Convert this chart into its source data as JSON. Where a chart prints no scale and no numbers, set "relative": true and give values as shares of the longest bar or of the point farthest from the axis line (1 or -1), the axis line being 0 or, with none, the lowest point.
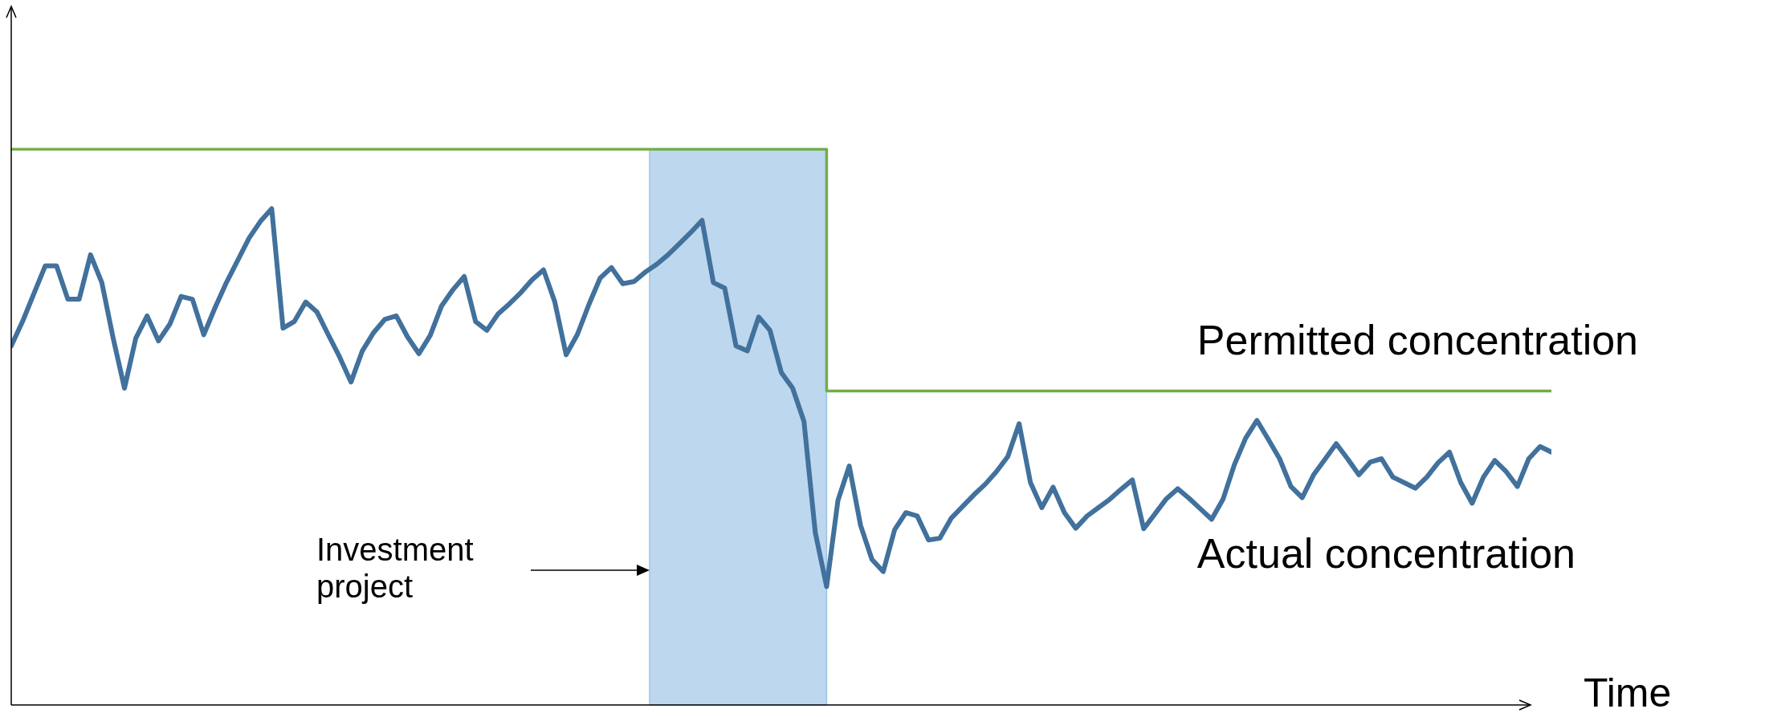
{
  "chart_data": {
    "type": "line",
    "relative": true,
    "xlabel": "Time",
    "legend": false,
    "marker": "none",
    "line_style": "solid",
    "categories": [
      null,
      null,
      null,
      null,
      null,
      null,
      null,
      null,
      null,
      null,
      null,
      null,
      null,
      null,
      null,
      null,
      null,
      null,
      null,
      null,
      null,
      null,
      null,
      null,
      null,
      null,
      null,
      null,
      null,
      null,
      null,
      null,
      null,
      null,
      null,
      null,
      null,
      null,
      null,
      null,
      null,
      null,
      null,
      null,
      null,
      null,
      null,
      null,
      null,
      null,
      null,
      null,
      null,
      null,
      null,
      null,
      null,
      null,
      null,
      null,
      null,
      null,
      null,
      null,
      null,
      null,
      null,
      null,
      null,
      null,
      null,
      null,
      null,
      null,
      null,
      null,
      null,
      null,
      null,
      null,
      null,
      null,
      null,
      null,
      null,
      null,
      null,
      null,
      null,
      null,
      null,
      null,
      null,
      null,
      null,
      null,
      null,
      null,
      null,
      null,
      null,
      null,
      null,
      null,
      null,
      null,
      null,
      null,
      null,
      null,
      null,
      null,
      null,
      null,
      null,
      null,
      null,
      null,
      null,
      null,
      null,
      null,
      null,
      null,
      null,
      null,
      null,
      null,
      null,
      null,
      null,
      null,
      null,
      null,
      null,
      null,
      null
    ],
    "annotations": [
      "Investment project"
    ],
    "series": [
      {
        "name": "Permitted concentration",
        "type": "step",
        "color": "#70ad47",
        "values": [
          1,
          1,
          1,
          1,
          1,
          1,
          1,
          1,
          1,
          1,
          1,
          1,
          1,
          1,
          1,
          1,
          1,
          1,
          1,
          1,
          1,
          1,
          1,
          1,
          1,
          1,
          1,
          1,
          1,
          1,
          1,
          1,
          1,
          1,
          1,
          1,
          1,
          1,
          1,
          1,
          1,
          1,
          1,
          1,
          1,
          1,
          1,
          1,
          1,
          1,
          1,
          1,
          1,
          1,
          1,
          1,
          1,
          1,
          1,
          1,
          1,
          1,
          1,
          1,
          1,
          1,
          1,
          1,
          1,
          1,
          1,
          1,
          0.565,
          0.565,
          0.565,
          0.565,
          0.565,
          0.565,
          0.565,
          0.565,
          0.565,
          0.565,
          0.565,
          0.565,
          0.565,
          0.565,
          0.565,
          0.565,
          0.565,
          0.565,
          0.565,
          0.565,
          0.565,
          0.565,
          0.565,
          0.565,
          0.565,
          0.565,
          0.565,
          0.565,
          0.565,
          0.565,
          0.565,
          0.565,
          0.565,
          0.565,
          0.565,
          0.565,
          0.565,
          0.565,
          0.565,
          0.565,
          0.565,
          0.565,
          0.565,
          0.565,
          0.565,
          0.565,
          0.565,
          0.565,
          0.565,
          0.565,
          0.565,
          0.565,
          0.565,
          0.565,
          0.565,
          0.565,
          0.565,
          0.565,
          0.565,
          0.565,
          0.565,
          0.565,
          0.565,
          0.565,
          0.565
        ]
      },
      {
        "name": "Actual concentration",
        "color": "#41719c",
        "values": [
          0.646,
          0.69,
          0.74,
          0.79,
          0.79,
          0.73,
          0.73,
          0.81,
          0.76,
          0.66,
          0.57,
          0.66,
          0.7,
          0.655,
          0.685,
          0.735,
          0.73,
          0.666,
          0.715,
          0.76,
          0.8,
          0.84,
          0.87,
          0.893,
          0.678,
          0.69,
          0.725,
          0.707,
          0.666,
          0.626,
          0.581,
          0.637,
          0.67,
          0.694,
          0.7,
          0.662,
          0.632,
          0.665,
          0.718,
          0.747,
          0.771,
          0.69,
          0.674,
          0.704,
          0.722,
          0.742,
          0.765,
          0.783,
          0.725,
          0.63,
          0.667,
          0.72,
          0.768,
          0.787,
          0.758,
          0.762,
          0.779,
          0.793,
          0.81,
          0.83,
          0.85,
          0.872,
          0.76,
          0.75,
          0.646,
          0.637,
          0.698,
          0.674,
          0.598,
          0.57,
          0.51,
          0.31,
          0.213,
          0.368,
          0.43,
          0.323,
          0.262,
          0.24,
          0.315,
          0.346,
          0.34,
          0.297,
          0.3,
          0.336,
          0.357,
          0.378,
          0.397,
          0.42,
          0.447,
          0.506,
          0.4,
          0.355,
          0.392,
          0.346,
          0.318,
          0.34,
          0.355,
          0.37,
          0.388,
          0.405,
          0.317,
          0.344,
          0.371,
          0.389,
          0.372,
          0.353,
          0.334,
          0.37,
          0.432,
          0.48,
          0.512,
          0.478,
          0.443,
          0.393,
          0.373,
          0.414,
          0.442,
          0.47,
          0.443,
          0.414,
          0.437,
          0.443,
          0.41,
          0.4,
          0.39,
          0.41,
          0.436,
          0.455,
          0.4,
          0.363,
          0.41,
          0.44,
          0.42,
          0.393,
          0.443,
          0.465,
          0.455
        ]
      }
    ]
  }
}
